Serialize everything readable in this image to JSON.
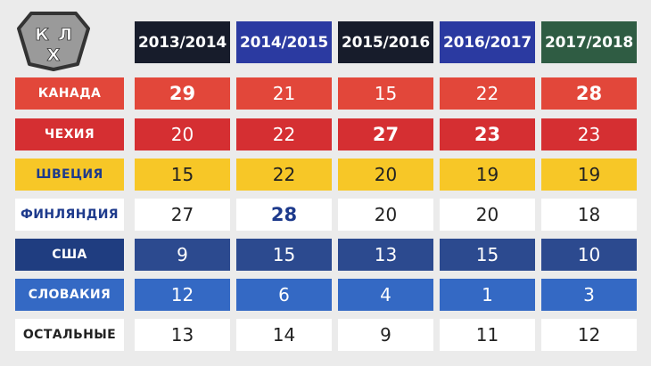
{
  "logo": {
    "letters": [
      "К",
      "Х",
      "Л"
    ],
    "fill": "#9a9a9a",
    "stroke": "#333333"
  },
  "columns": [
    {
      "label": "2013/2014",
      "color": "#171c2b"
    },
    {
      "label": "2014/2015",
      "color": "#2b3aa1"
    },
    {
      "label": "2015/2016",
      "color": "#171c2b"
    },
    {
      "label": "2016/2017",
      "color": "#2b3aa1"
    },
    {
      "label": "2017/2018",
      "color": "#2f5c43"
    }
  ],
  "rows": [
    {
      "label": "КАНАДА",
      "label_bg": "#e2473a",
      "label_color": "#ffffff",
      "cell_bg": "#e2473a",
      "cell_color": "#ffffff",
      "values": [
        {
          "v": "29",
          "bold": true
        },
        {
          "v": "21",
          "bold": false
        },
        {
          "v": "15",
          "bold": false
        },
        {
          "v": "22",
          "bold": false
        },
        {
          "v": "28",
          "bold": true
        }
      ]
    },
    {
      "label": "ЧЕХИЯ",
      "label_bg": "#d52f32",
      "label_color": "#ffffff",
      "cell_bg": "#d52f32",
      "cell_color": "#ffffff",
      "values": [
        {
          "v": "20",
          "bold": false
        },
        {
          "v": "22",
          "bold": false
        },
        {
          "v": "27",
          "bold": true
        },
        {
          "v": "23",
          "bold": true
        },
        {
          "v": "23",
          "bold": false
        }
      ]
    },
    {
      "label": "ШВЕЦИЯ",
      "label_bg": "#f7c727",
      "label_color": "#1d3a8c",
      "cell_bg": "#f7c727",
      "cell_color": "#222222",
      "values": [
        {
          "v": "15",
          "bold": false
        },
        {
          "v": "22",
          "bold": false
        },
        {
          "v": "20",
          "bold": false
        },
        {
          "v": "19",
          "bold": false
        },
        {
          "v": "19",
          "bold": false
        }
      ]
    },
    {
      "label": "ФИНЛЯНДИЯ",
      "label_bg": "#ffffff",
      "label_color": "#1d3a8c",
      "cell_bg": "#ffffff",
      "cell_color": "#222222",
      "bold_color": "#1d3a8c",
      "values": [
        {
          "v": "27",
          "bold": false
        },
        {
          "v": "28",
          "bold": true
        },
        {
          "v": "20",
          "bold": false
        },
        {
          "v": "20",
          "bold": false
        },
        {
          "v": "18",
          "bold": false
        }
      ]
    },
    {
      "label": "США",
      "label_bg": "#1f3d80",
      "label_color": "#ffffff",
      "cell_bg": "#2c4a8f",
      "cell_color": "#ffffff",
      "values": [
        {
          "v": "9",
          "bold": false
        },
        {
          "v": "15",
          "bold": false
        },
        {
          "v": "13",
          "bold": false
        },
        {
          "v": "15",
          "bold": false
        },
        {
          "v": "10",
          "bold": false
        }
      ]
    },
    {
      "label": "СЛОВАКИЯ",
      "label_bg": "#3469c4",
      "label_color": "#ffffff",
      "cell_bg": "#3469c4",
      "cell_color": "#ffffff",
      "values": [
        {
          "v": "12",
          "bold": false
        },
        {
          "v": "6",
          "bold": false
        },
        {
          "v": "4",
          "bold": false
        },
        {
          "v": "1",
          "bold": false
        },
        {
          "v": "3",
          "bold": false
        }
      ]
    },
    {
      "label": "ОСТАЛЬНЫЕ",
      "label_bg": "#ffffff",
      "label_color": "#222222",
      "cell_bg": "#ffffff",
      "cell_color": "#222222",
      "values": [
        {
          "v": "13",
          "bold": false
        },
        {
          "v": "14",
          "bold": false
        },
        {
          "v": "9",
          "bold": false
        },
        {
          "v": "11",
          "bold": false
        },
        {
          "v": "12",
          "bold": false
        }
      ]
    }
  ]
}
